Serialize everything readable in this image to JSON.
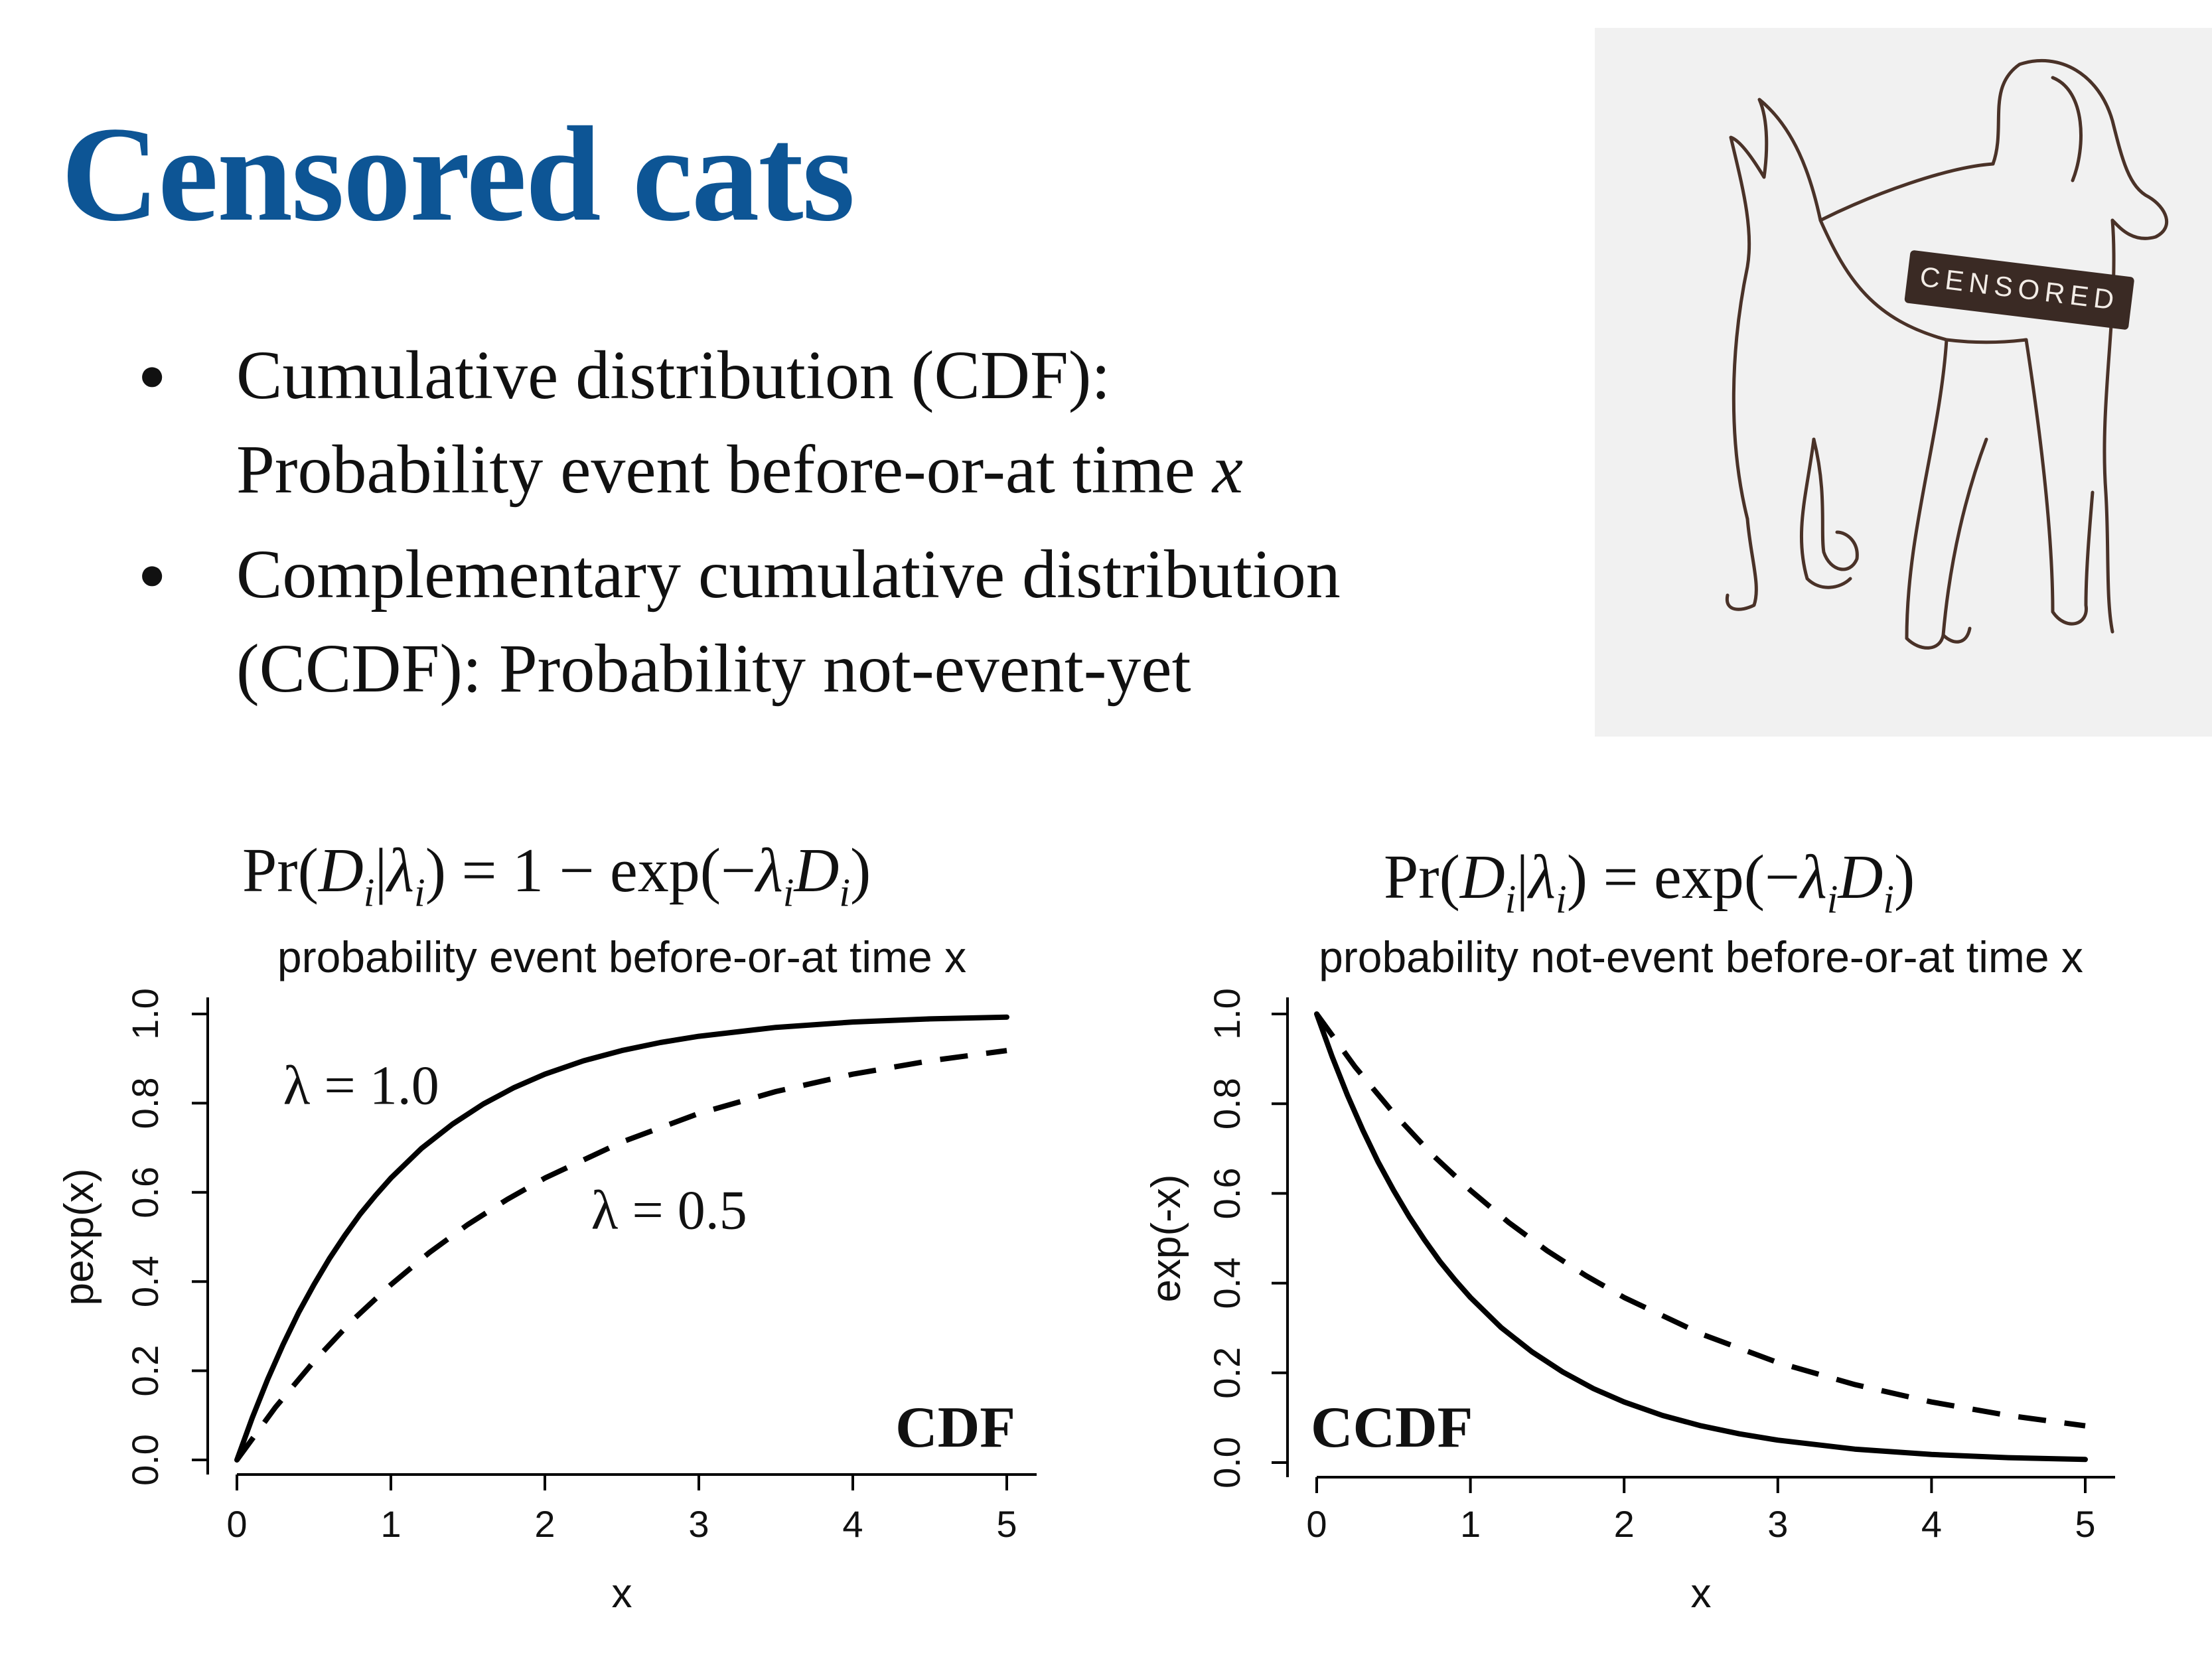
{
  "slide": {
    "title": "Censored cats",
    "bullets": [
      {
        "line1": "Cumulative distribution (CDF):",
        "line2_prefix": "Probability event before-or-at time ",
        "line2_var": "x"
      },
      {
        "line1": "Complementary cumulative distribution",
        "line2_prefix": "(CCDF): Probability not-event-yet",
        "line2_var": ""
      }
    ]
  },
  "photo": {
    "stamp_text": "CENSORED",
    "colors": {
      "background": "#f1f1f1",
      "line": "#4a3228",
      "stamp": "#3a2a24"
    }
  },
  "formulas": {
    "left": {
      "lhs": "Pr",
      "D": "D",
      "i": "i",
      "lambda": "λ",
      "equals": "=",
      "rhs_prefix": "1 − exp(−",
      "rhs_suffix": ")"
    },
    "right": {
      "lhs": "Pr",
      "D": "D",
      "i": "i",
      "lambda": "λ",
      "equals": "=",
      "rhs_prefix": "exp(−",
      "rhs_suffix": ")"
    }
  },
  "colors": {
    "title": "#0d5595",
    "text": "#111111",
    "curve": "#000000"
  },
  "chart_data": [
    {
      "type": "line",
      "title": "probability event before-or-at time x",
      "xlabel": "x",
      "ylabel": "pexp(x)",
      "xlim": [
        0,
        5
      ],
      "ylim": [
        0,
        1
      ],
      "xticks": [
        0,
        1,
        2,
        3,
        4,
        5
      ],
      "yticks": [
        "0.0",
        "0.2",
        "0.4",
        "0.6",
        "0.8",
        "1.0"
      ],
      "corner_label": "CDF",
      "annotations": [
        {
          "text": "λ = 1.0",
          "x": 0.3,
          "y": 0.84
        },
        {
          "text": "λ = 0.5",
          "x": 2.3,
          "y": 0.56
        }
      ],
      "series": [
        {
          "style": "solid",
          "x": [
            0,
            0.1,
            0.2,
            0.3,
            0.4,
            0.5,
            0.6,
            0.7,
            0.8,
            0.9,
            1,
            1.2,
            1.4,
            1.6,
            1.8,
            2,
            2.25,
            2.5,
            2.75,
            3,
            3.5,
            4,
            4.5,
            5
          ],
          "y": [
            0,
            0.095,
            0.181,
            0.259,
            0.33,
            0.393,
            0.451,
            0.503,
            0.551,
            0.593,
            0.632,
            0.699,
            0.753,
            0.798,
            0.835,
            0.865,
            0.895,
            0.918,
            0.936,
            0.95,
            0.97,
            0.982,
            0.989,
            0.993
          ]
        },
        {
          "style": "dashed",
          "x": [
            0,
            0.25,
            0.5,
            0.75,
            1,
            1.25,
            1.5,
            1.75,
            2,
            2.5,
            3,
            3.5,
            4,
            4.5,
            5
          ],
          "y": [
            0,
            0.118,
            0.221,
            0.313,
            0.393,
            0.465,
            0.528,
            0.583,
            0.632,
            0.713,
            0.777,
            0.826,
            0.865,
            0.895,
            0.918
          ]
        }
      ]
    },
    {
      "type": "line",
      "title": "probability not-event before-or-at time x",
      "xlabel": "x",
      "ylabel": "exp(-x)",
      "xlim": [
        0,
        5
      ],
      "ylim": [
        0,
        1
      ],
      "xticks": [
        0,
        1,
        2,
        3,
        4,
        5
      ],
      "yticks": [
        "0.0",
        "0.2",
        "0.4",
        "0.6",
        "0.8",
        "1.0"
      ],
      "corner_label": "CCDF",
      "annotations": [],
      "series": [
        {
          "style": "solid",
          "x": [
            0,
            0.1,
            0.2,
            0.3,
            0.4,
            0.5,
            0.6,
            0.7,
            0.8,
            0.9,
            1,
            1.2,
            1.4,
            1.6,
            1.8,
            2,
            2.25,
            2.5,
            2.75,
            3,
            3.5,
            4,
            4.5,
            5
          ],
          "y": [
            1,
            0.905,
            0.819,
            0.741,
            0.67,
            0.607,
            0.549,
            0.497,
            0.449,
            0.407,
            0.368,
            0.301,
            0.247,
            0.202,
            0.165,
            0.135,
            0.105,
            0.082,
            0.064,
            0.05,
            0.03,
            0.018,
            0.011,
            0.007
          ]
        },
        {
          "style": "dashed",
          "x": [
            0,
            0.25,
            0.5,
            0.75,
            1,
            1.25,
            1.5,
            1.75,
            2,
            2.5,
            3,
            3.5,
            4,
            4.5,
            5
          ],
          "y": [
            1,
            0.882,
            0.779,
            0.687,
            0.607,
            0.535,
            0.472,
            0.417,
            0.368,
            0.287,
            0.223,
            0.174,
            0.135,
            0.105,
            0.082
          ]
        }
      ]
    }
  ]
}
